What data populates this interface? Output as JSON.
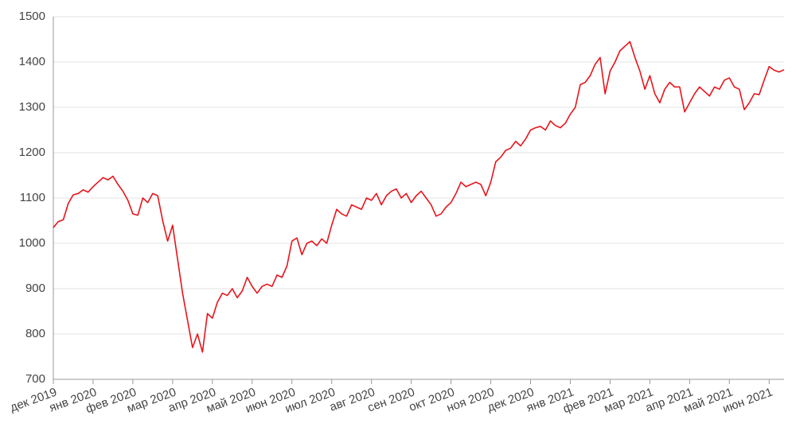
{
  "chart_data": {
    "type": "line",
    "color": "#e8141b",
    "grid": true,
    "ylim": [
      700,
      1500
    ],
    "yticks": [
      700,
      800,
      900,
      1000,
      1100,
      1200,
      1300,
      1400,
      1500
    ],
    "categories": [
      "дек 2019",
      null,
      null,
      null,
      null,
      null,
      null,
      null,
      "янв 2020",
      null,
      null,
      null,
      null,
      null,
      null,
      null,
      "фев 2020",
      null,
      null,
      null,
      null,
      null,
      null,
      null,
      "мар 2020",
      null,
      null,
      null,
      null,
      null,
      null,
      null,
      "апр 2020",
      null,
      null,
      null,
      null,
      null,
      null,
      null,
      "май 2020",
      null,
      null,
      null,
      null,
      null,
      null,
      null,
      "июн 2020",
      null,
      null,
      null,
      null,
      null,
      null,
      null,
      "июл 2020",
      null,
      null,
      null,
      null,
      null,
      null,
      null,
      "авг 2020",
      null,
      null,
      null,
      null,
      null,
      null,
      null,
      "сен 2020",
      null,
      null,
      null,
      null,
      null,
      null,
      null,
      "окт 2020",
      null,
      null,
      null,
      null,
      null,
      null,
      null,
      "ноя 2020",
      null,
      null,
      null,
      null,
      null,
      null,
      null,
      "дек 2020",
      null,
      null,
      null,
      null,
      null,
      null,
      null,
      "янв 2021",
      null,
      null,
      null,
      null,
      null,
      null,
      null,
      "фев 2021",
      null,
      null,
      null,
      null,
      null,
      null,
      null,
      "мар 2021",
      null,
      null,
      null,
      null,
      null,
      null,
      null,
      "апр 2021",
      null,
      null,
      null,
      null,
      null,
      null,
      null,
      "май 2021",
      null,
      null,
      null,
      null,
      null,
      null,
      null,
      "июн 2021",
      null,
      null,
      null
    ],
    "values": [
      1035,
      1048,
      1052,
      1088,
      1107,
      1110,
      1118,
      1113,
      1125,
      1135,
      1145,
      1140,
      1148,
      1130,
      1115,
      1095,
      1065,
      1062,
      1100,
      1090,
      1110,
      1105,
      1050,
      1005,
      1040,
      965,
      890,
      830,
      770,
      800,
      760,
      845,
      835,
      870,
      890,
      885,
      900,
      880,
      895,
      925,
      905,
      890,
      905,
      910,
      905,
      930,
      925,
      950,
      1005,
      1012,
      975,
      1000,
      1005,
      995,
      1010,
      1000,
      1040,
      1075,
      1065,
      1060,
      1085,
      1080,
      1075,
      1100,
      1095,
      1110,
      1085,
      1105,
      1115,
      1120,
      1100,
      1110,
      1090,
      1105,
      1115,
      1100,
      1085,
      1060,
      1065,
      1080,
      1090,
      1110,
      1135,
      1125,
      1130,
      1135,
      1130,
      1105,
      1135,
      1180,
      1190,
      1205,
      1210,
      1225,
      1215,
      1230,
      1250,
      1255,
      1258,
      1250,
      1270,
      1260,
      1255,
      1265,
      1285,
      1300,
      1350,
      1355,
      1370,
      1395,
      1410,
      1330,
      1380,
      1400,
      1425,
      1435,
      1445,
      1410,
      1380,
      1340,
      1370,
      1330,
      1310,
      1340,
      1355,
      1345,
      1345,
      1290,
      1310,
      1330,
      1345,
      1335,
      1325,
      1345,
      1340,
      1360,
      1365,
      1345,
      1340,
      1295,
      1310,
      1330,
      1328,
      1360,
      1390,
      1382,
      1378,
      1383
    ]
  }
}
